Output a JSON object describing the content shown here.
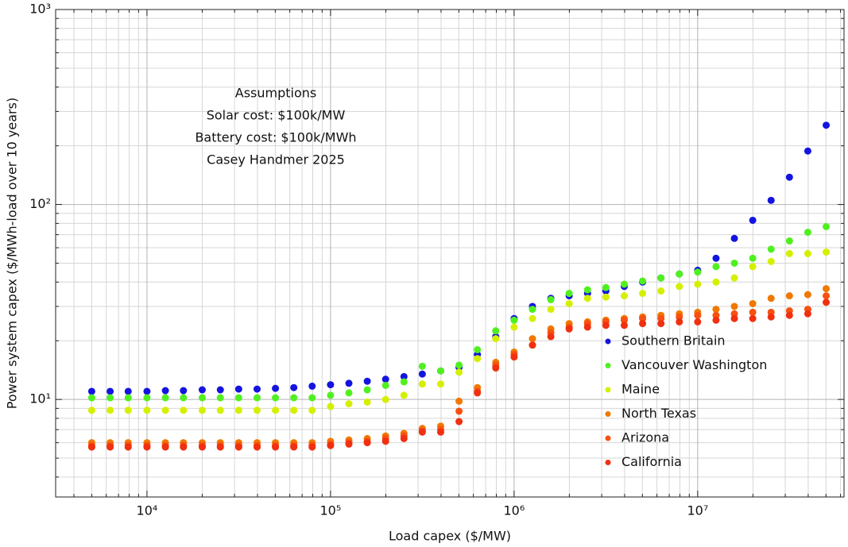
{
  "chart_data": {
    "type": "scatter",
    "xlabel": "Load capex ($/MW)",
    "ylabel": "Power system capex ($/MWh-load over 10 years)",
    "annotation": [
      "Assumptions",
      "Solar cost: $100k/MW",
      "Battery cost: $100k/MWh",
      "Casey Handmer 2025"
    ],
    "xscale": "log",
    "yscale": "log",
    "grid": true,
    "legend": "lower right",
    "xlim": [
      3180,
      62700000
    ],
    "ylim": [
      3.16,
      1000
    ],
    "xticks": [
      {
        "value": 10000,
        "label": "10⁴"
      },
      {
        "value": 100000,
        "label": "10⁵"
      },
      {
        "value": 1000000,
        "label": "10⁶"
      },
      {
        "value": 10000000,
        "label": "10⁷"
      }
    ],
    "yticks": [
      {
        "value": 10,
        "label": "10¹"
      },
      {
        "value": 100,
        "label": "10²"
      },
      {
        "value": 1000,
        "label": "10³"
      }
    ],
    "x": [
      5000,
      6300,
      7900,
      10000,
      12600,
      15800,
      20000,
      25100,
      31600,
      39800,
      50100,
      63100,
      79400,
      100000,
      125900,
      158500,
      199500,
      251200,
      316200,
      398100,
      501200,
      631000,
      794300,
      1000000,
      1259000,
      1585000,
      1995000,
      2512000,
      3162000,
      3981000,
      5012000,
      6310000,
      7943000,
      10000000,
      12590000,
      15850000,
      19950000,
      25120000,
      31620000,
      39810000,
      50120000
    ],
    "series": [
      {
        "name": "Southern Britain",
        "color": "#1414e0",
        "values": [
          11,
          11,
          11,
          11,
          11.1,
          11.1,
          11.2,
          11.2,
          11.3,
          11.3,
          11.4,
          11.5,
          11.7,
          11.9,
          12.1,
          12.4,
          12.7,
          13.1,
          13.5,
          14,
          14.6,
          17,
          21,
          26,
          30,
          33,
          34,
          35,
          36,
          38,
          40,
          42,
          44,
          46,
          53,
          67,
          83,
          105,
          138,
          188,
          255
        ]
      },
      {
        "name": "Vancouver Washington",
        "color": "#50f020",
        "values": [
          10.2,
          10.2,
          10.2,
          10.2,
          10.2,
          10.2,
          10.2,
          10.2,
          10.2,
          10.2,
          10.2,
          10.2,
          10.2,
          10.5,
          10.8,
          11.2,
          11.8,
          12.3,
          14.8,
          14,
          15,
          18,
          22.5,
          25.5,
          29,
          32.5,
          35,
          36.5,
          37.5,
          39,
          40.5,
          42,
          44,
          45,
          48,
          50,
          53,
          59,
          65,
          72,
          77
        ]
      },
      {
        "name": "Maine",
        "color": "#d4f000",
        "values": [
          8.8,
          8.8,
          8.8,
          8.8,
          8.8,
          8.8,
          8.8,
          8.8,
          8.8,
          8.8,
          8.8,
          8.8,
          8.8,
          9.2,
          9.5,
          9.7,
          10,
          10.5,
          12,
          12,
          13.8,
          16.2,
          20.5,
          23.5,
          26,
          29,
          31,
          33,
          33.5,
          34,
          35,
          36,
          38,
          39,
          40,
          42,
          48,
          51,
          56,
          56,
          57
        ]
      },
      {
        "name": "North Texas",
        "color": "#f07800",
        "values": [
          6,
          6,
          6,
          6,
          6,
          6,
          6,
          6,
          6,
          6,
          6,
          6,
          6,
          6.1,
          6.2,
          6.3,
          6.5,
          6.7,
          7.1,
          7.3,
          9.8,
          11.5,
          15.5,
          17.5,
          20.5,
          23,
          24.5,
          25,
          25.5,
          26,
          26.5,
          27,
          27.5,
          28,
          29,
          30,
          31,
          33,
          34,
          34.5,
          37
        ]
      },
      {
        "name": "Arizona",
        "color": "#f85010",
        "values": [
          5.8,
          5.8,
          5.8,
          5.8,
          5.8,
          5.8,
          5.8,
          5.8,
          5.8,
          5.8,
          5.8,
          5.8,
          5.8,
          5.9,
          6,
          6.1,
          6.3,
          6.5,
          6.9,
          7,
          8.7,
          11,
          15,
          17,
          19,
          22,
          23.5,
          24.5,
          25,
          25.5,
          26,
          26,
          26.5,
          27,
          27,
          27.5,
          28,
          28,
          28.5,
          29,
          34
        ]
      },
      {
        "name": "California",
        "color": "#f03010",
        "values": [
          5.7,
          5.7,
          5.7,
          5.7,
          5.7,
          5.7,
          5.7,
          5.7,
          5.7,
          5.7,
          5.7,
          5.7,
          5.7,
          5.8,
          5.9,
          6,
          6.1,
          6.3,
          6.8,
          6.8,
          7.7,
          10.8,
          14.5,
          16.5,
          19,
          21,
          23,
          23.5,
          24,
          24,
          24.5,
          24.5,
          25,
          25,
          25.5,
          26,
          26,
          26.5,
          27,
          27.5,
          31.5
        ]
      }
    ]
  }
}
